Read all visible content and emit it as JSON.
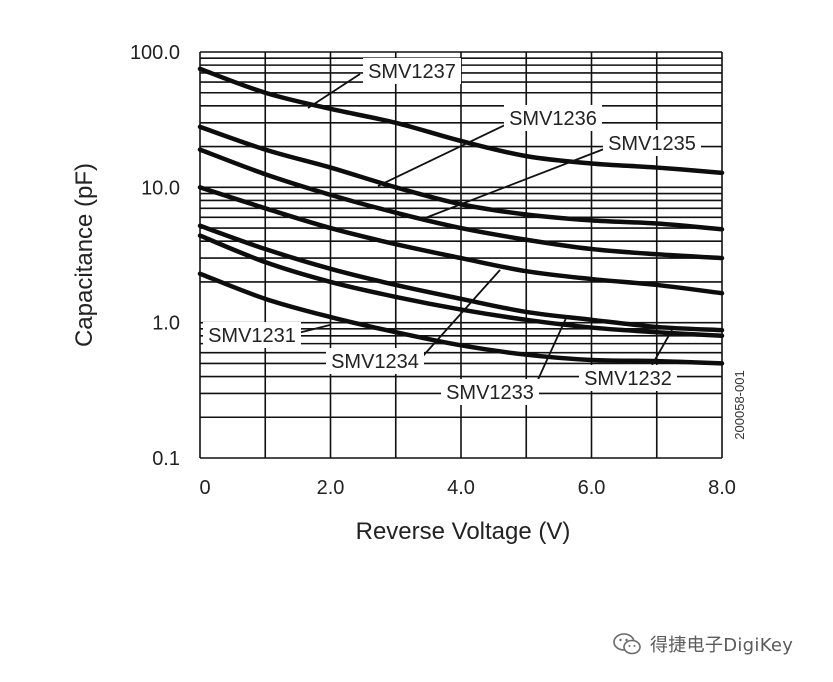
{
  "chart_data": {
    "type": "line",
    "title": "",
    "xlabel": "Reverse Voltage (V)",
    "ylabel": "Capacitance (pF)",
    "xlim": [
      0,
      8
    ],
    "ylim": [
      0.1,
      100
    ],
    "yscale": "log",
    "grid": true,
    "x_ticks": [
      "0",
      "2.0",
      "4.0",
      "6.0",
      "8.0"
    ],
    "y_ticks": [
      "0.1",
      "1.0",
      "10.0",
      "100.0"
    ],
    "figure_id": "200058-001",
    "series": [
      {
        "name": "SMV1237",
        "x": [
          0,
          1,
          2,
          3,
          4,
          5,
          6,
          7,
          8
        ],
        "values": [
          75,
          50,
          38,
          30,
          22,
          17,
          15,
          14,
          12.8
        ]
      },
      {
        "name": "SMV1236",
        "x": [
          0,
          1,
          2,
          3,
          4,
          5,
          6,
          7,
          8
        ],
        "values": [
          28,
          19,
          14,
          10,
          7.5,
          6.3,
          5.7,
          5.4,
          4.9
        ]
      },
      {
        "name": "SMV1235",
        "x": [
          0,
          1,
          2,
          3,
          4,
          5,
          6,
          7,
          8
        ],
        "values": [
          19,
          12.5,
          8.8,
          6.5,
          5.0,
          4.1,
          3.5,
          3.2,
          3.0
        ]
      },
      {
        "name": "SMV1234",
        "x": [
          0,
          1,
          2,
          3,
          4,
          5,
          6,
          7,
          8
        ],
        "values": [
          10,
          7.0,
          5.0,
          3.8,
          3.0,
          2.4,
          2.1,
          1.9,
          1.65
        ]
      },
      {
        "name": "SMV1233",
        "x": [
          0,
          1,
          2,
          3,
          4,
          5,
          6,
          7,
          8
        ],
        "values": [
          5.2,
          3.5,
          2.5,
          1.9,
          1.5,
          1.2,
          1.05,
          0.93,
          0.88
        ]
      },
      {
        "name": "SMV1231",
        "x": [
          0,
          1,
          2,
          3,
          4,
          5,
          6,
          7,
          8
        ],
        "values": [
          4.4,
          2.8,
          2.0,
          1.55,
          1.25,
          1.05,
          0.92,
          0.85,
          0.8
        ]
      },
      {
        "name": "SMV1232",
        "x": [
          0,
          1,
          2,
          3,
          4,
          5,
          6,
          7,
          8
        ],
        "values": [
          2.3,
          1.5,
          1.1,
          0.85,
          0.68,
          0.58,
          0.53,
          0.52,
          0.5
        ]
      }
    ]
  },
  "watermark": {
    "text": "得捷电子DigiKey",
    "icon": "wechat-icon"
  }
}
